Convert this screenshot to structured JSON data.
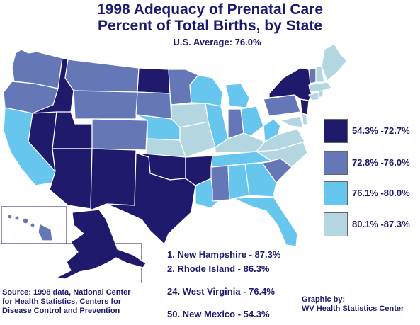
{
  "title_line1": "1998 Adequacy of Prenatal Care",
  "title_line2": "Percent of Total Births, by State",
  "average": "U.S. Average: 76.0%",
  "colors": {
    "q1": "#1f1a6b",
    "q2": "#6677b8",
    "q3": "#66c6ee",
    "q4": "#b3d6e0",
    "border": "#ffffff",
    "text": "#1a1a6e"
  },
  "legend": [
    {
      "label": "54.3%  -72.7%",
      "color": "#1f1a6b"
    },
    {
      "label": "72.8%  -76.0%",
      "color": "#6677b8"
    },
    {
      "label": "76.1%  -80.0%",
      "color": "#66c6ee"
    },
    {
      "label": "80.1%  -87.3%",
      "color": "#b3d6e0"
    }
  ],
  "rankings": [
    "1. New Hampshire - 87.3%",
    "2. Rhode Island - 86.3%",
    "24. West Virginia - 76.4%",
    "50. New Mexico - 54.3%"
  ],
  "source": "Source: 1998 data, National Center for Health Statistics, Centers for Disease Control and Prevention",
  "credit_line1": "Graphic by:",
  "credit_line2": "WV Health Statistics Center"
}
